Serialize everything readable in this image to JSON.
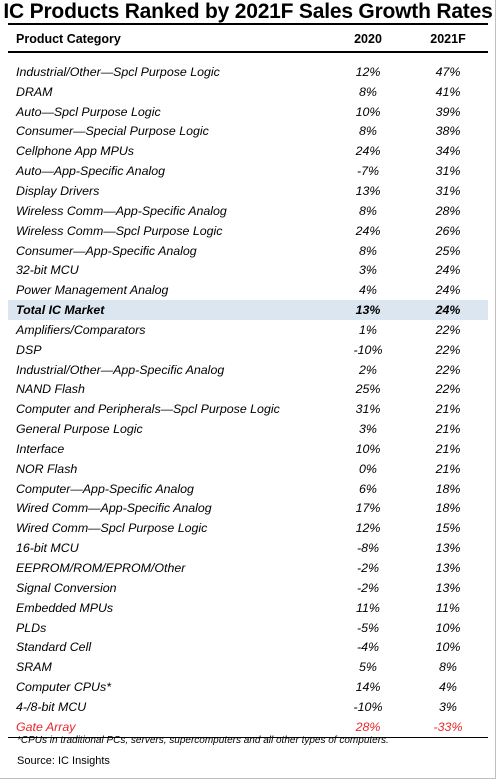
{
  "title": "IC Products Ranked by 2021F Sales Growth Rates",
  "headers": {
    "category": "Product Category",
    "col1": "2020",
    "col2": "2021F"
  },
  "rows": [
    {
      "category": "Industrial/Other—Spcl Purpose Logic",
      "v2020": "12%",
      "v2021": "47%"
    },
    {
      "category": "DRAM",
      "v2020": "8%",
      "v2021": "41%"
    },
    {
      "category": "Auto—Spcl Purpose Logic",
      "v2020": "10%",
      "v2021": "39%"
    },
    {
      "category": "Consumer—Special Purpose Logic",
      "v2020": "8%",
      "v2021": "38%"
    },
    {
      "category": "Cellphone App MPUs",
      "v2020": "24%",
      "v2021": "34%"
    },
    {
      "category": "Auto—App-Specific Analog",
      "v2020": "-7%",
      "v2021": "31%"
    },
    {
      "category": "Display Drivers",
      "v2020": "13%",
      "v2021": "31%"
    },
    {
      "category": "Wireless Comm—App-Specific Analog",
      "v2020": "8%",
      "v2021": "28%"
    },
    {
      "category": "Wireless Comm—Spcl Purpose Logic",
      "v2020": "24%",
      "v2021": "26%"
    },
    {
      "category": "Consumer—App-Specific Analog",
      "v2020": "8%",
      "v2021": "25%"
    },
    {
      "category": "32-bit MCU",
      "v2020": "3%",
      "v2021": "24%"
    },
    {
      "category": "Power Management Analog",
      "v2020": "4%",
      "v2021": "24%"
    },
    {
      "category": "Total IC Market",
      "v2020": "13%",
      "v2021": "24%"
    },
    {
      "category": "Amplifiers/Comparators",
      "v2020": "1%",
      "v2021": "22%"
    },
    {
      "category": "DSP",
      "v2020": "-10%",
      "v2021": "22%"
    },
    {
      "category": "Industrial/Other—App-Specific Analog",
      "v2020": "2%",
      "v2021": "22%"
    },
    {
      "category": "NAND Flash",
      "v2020": "25%",
      "v2021": "22%"
    },
    {
      "category": "Computer and Peripherals—Spcl Purpose Logic",
      "v2020": "31%",
      "v2021": "21%"
    },
    {
      "category": "General Purpose Logic",
      "v2020": "3%",
      "v2021": "21%"
    },
    {
      "category": "Interface",
      "v2020": "10%",
      "v2021": "21%"
    },
    {
      "category": "NOR Flash",
      "v2020": "0%",
      "v2021": "21%"
    },
    {
      "category": "Computer—App-Specific Analog",
      "v2020": "6%",
      "v2021": "18%"
    },
    {
      "category": "Wired Comm—App-Specific Analog",
      "v2020": "17%",
      "v2021": "18%"
    },
    {
      "category": "Wired Comm—Spcl Purpose Logic",
      "v2020": "12%",
      "v2021": "15%"
    },
    {
      "category": "16-bit MCU",
      "v2020": "-8%",
      "v2021": "13%"
    },
    {
      "category": "EEPROM/ROM/EPROM/Other",
      "v2020": "-2%",
      "v2021": "13%"
    },
    {
      "category": "Signal Conversion",
      "v2020": "-2%",
      "v2021": "13%"
    },
    {
      "category": "Embedded MPUs",
      "v2020": "11%",
      "v2021": "11%"
    },
    {
      "category": "PLDs",
      "v2020": "-5%",
      "v2021": "10%"
    },
    {
      "category": "Standard Cell",
      "v2020": "-4%",
      "v2021": "10%"
    },
    {
      "category": "SRAM",
      "v2020": "5%",
      "v2021": "8%"
    },
    {
      "category": "Computer CPUs*",
      "v2020": "14%",
      "v2021": "4%"
    },
    {
      "category": "4-/8-bit MCU",
      "v2020": "-10%",
      "v2021": "3%"
    },
    {
      "category": "Gate Array",
      "v2020": "28%",
      "v2021": "-33%"
    }
  ],
  "highlight_color": "#dce6f1",
  "negative_row_color": "#e8262a",
  "footnote": "*CPUs in traditional PCs, servers, supercomputers and all other types of computers.",
  "source": "Source:  IC Insights"
}
